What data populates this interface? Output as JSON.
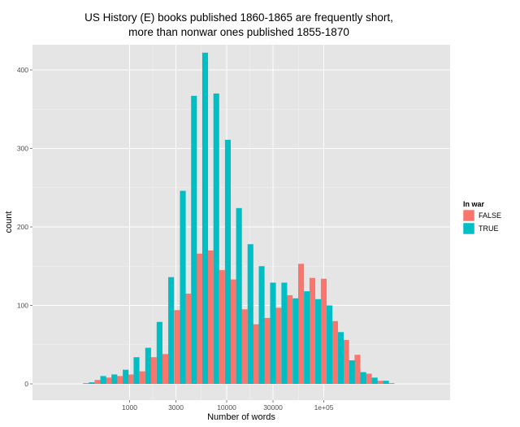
{
  "chart_data": {
    "type": "bar",
    "title_line1": "US History (E) books published 1860-1865 are frequently short,",
    "title_line2": "more than nonwar ones published 1855-1870",
    "xlabel": "Number of words",
    "ylabel": "count",
    "x_scale": "log10",
    "xlim": [
      100,
      2000000
    ],
    "ylim": [
      0,
      440
    ],
    "x_ticks": [
      {
        "value": 1000,
        "label": "1000"
      },
      {
        "value": 3000,
        "label": "3000"
      },
      {
        "value": 10000,
        "label": "10000"
      },
      {
        "value": 30000,
        "label": "30000"
      },
      {
        "value": 100000,
        "label": "1e+05"
      }
    ],
    "y_ticks": [
      {
        "value": 0,
        "label": "0"
      },
      {
        "value": 100,
        "label": "100"
      },
      {
        "value": 200,
        "label": "200"
      },
      {
        "value": 300,
        "label": "300"
      },
      {
        "value": 400,
        "label": "400"
      }
    ],
    "bins": [
      380,
      500,
      650,
      850,
      1100,
      1450,
      1900,
      2500,
      3300,
      4300,
      5600,
      7300,
      9600,
      12500,
      16400,
      21400,
      28000,
      36600,
      47800,
      62500,
      81700,
      107000,
      140000,
      182000,
      238000,
      312000,
      408000,
      534000
    ],
    "series": [
      {
        "name": "FALSE",
        "color": "#F8766D",
        "values": [
          1,
          5,
          8,
          10,
          12,
          16,
          34,
          38,
          94,
          115,
          166,
          170,
          145,
          133,
          95,
          76,
          84,
          97,
          113,
          153,
          135,
          134,
          80,
          56,
          37,
          13,
          4,
          1
        ]
      },
      {
        "name": "TRUE",
        "color": "#00BFC4",
        "values": [
          2,
          10,
          12,
          18,
          34,
          46,
          79,
          136,
          246,
          367,
          422,
          370,
          311,
          224,
          178,
          150,
          129,
          129,
          109,
          118,
          108,
          100,
          66,
          30,
          15,
          8,
          4,
          0
        ]
      }
    ],
    "legend": {
      "title": "In war",
      "position": "right"
    },
    "grid": true,
    "panel_background": "#E5E5E5"
  }
}
